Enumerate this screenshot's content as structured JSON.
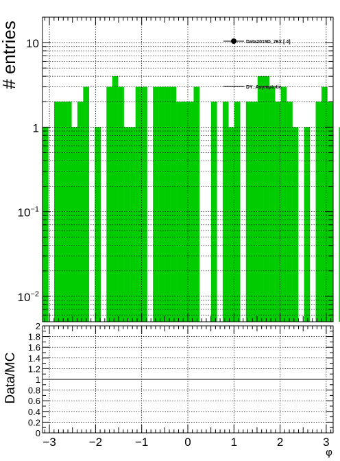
{
  "chart_data": [
    {
      "type": "bar",
      "panel": "main",
      "ylabel": "# entries",
      "yscale": "log",
      "ylim": [
        0.005,
        20
      ],
      "xlim": [
        -3.15,
        3.15
      ],
      "grid": true,
      "legend_position": "top-right",
      "legend": [
        "Data2015D_76X [        4]",
        "DY_Asymptotic"
      ],
      "bin_width": 0.126,
      "x_start": -3.15,
      "series": [
        {
          "name": "DY_Asymptotic",
          "style": "filled-histogram",
          "color": "#00cc00",
          "values": [
            1,
            0,
            2,
            2,
            2,
            1,
            2,
            3,
            0,
            1,
            0,
            3,
            4,
            3,
            1,
            1,
            3,
            3,
            0,
            3,
            3,
            3,
            3,
            2,
            2,
            2,
            3,
            0,
            0,
            2,
            0,
            2,
            1,
            2,
            0,
            2,
            2,
            4,
            4,
            3,
            2,
            3,
            2,
            1,
            0,
            1,
            0,
            2,
            3,
            2,
            0,
            1,
            1,
            0
          ]
        }
      ]
    },
    {
      "type": "line",
      "panel": "ratio",
      "xlabel": "φ",
      "ylabel": "Data/MC",
      "ylim": [
        0,
        2
      ],
      "xlim": [
        -3.15,
        3.15
      ],
      "grid": true,
      "series": [
        {
          "name": "",
          "x": [
            -3.15,
            3.15
          ],
          "values": [
            1,
            1
          ]
        }
      ]
    }
  ],
  "axes": {
    "main_y_ticks": [
      {
        "value": 10,
        "base": "10",
        "exp": ""
      },
      {
        "value": 1,
        "base": "1",
        "exp": ""
      },
      {
        "value": 0.1,
        "base": "10",
        "exp": "−1"
      },
      {
        "value": 0.01,
        "base": "10",
        "exp": "−2"
      }
    ],
    "ratio_y_ticks": [
      "0",
      "0.2",
      "0.4",
      "0.6",
      "0.8",
      "1",
      "1.2",
      "1.4",
      "1.6",
      "1.8",
      "2"
    ],
    "x_ticks": [
      "−3",
      "−2",
      "−1",
      "0",
      "1",
      "2",
      "3"
    ]
  },
  "colors": {
    "fill": "#00cc00",
    "axis": "#000000",
    "grid": "#000000"
  }
}
